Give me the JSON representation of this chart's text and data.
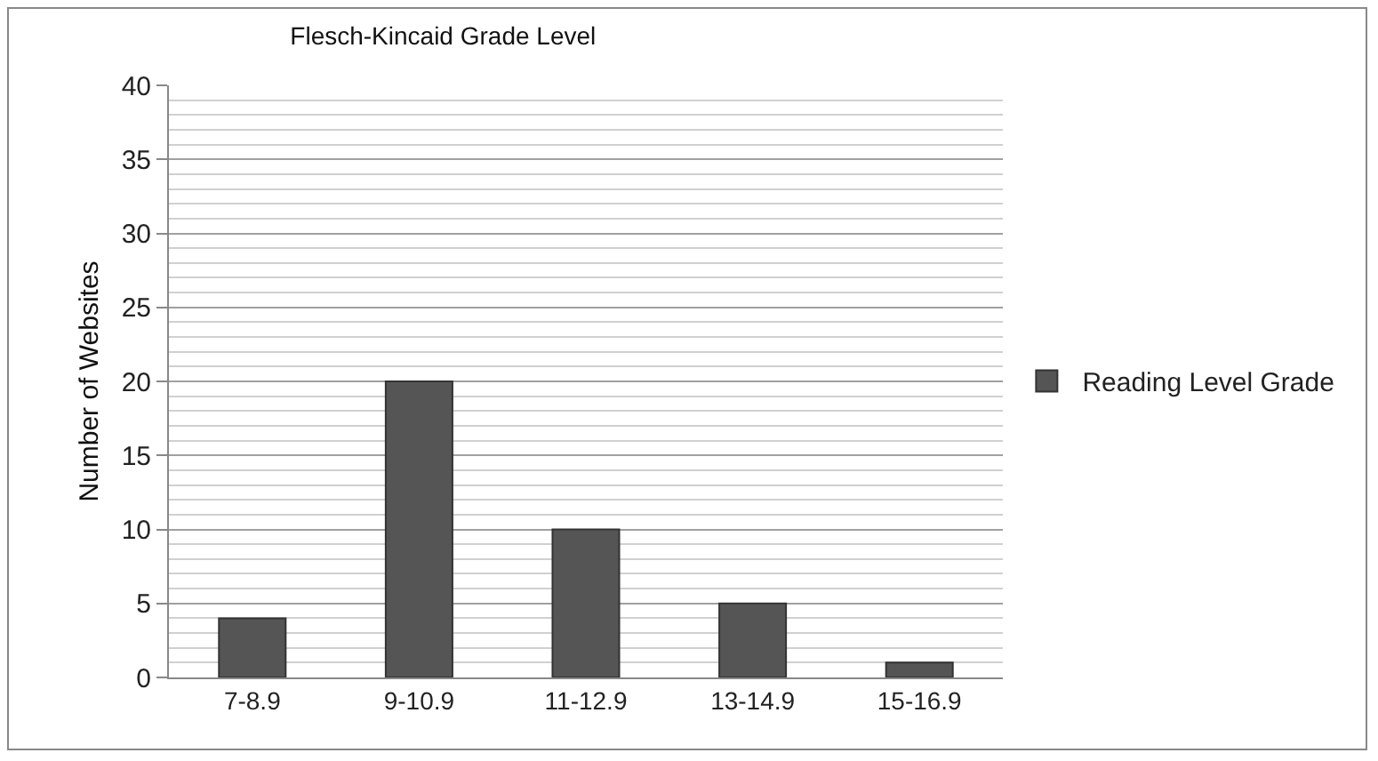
{
  "chart_data": {
    "type": "bar",
    "title": "Flesch-Kincaid Grade Level",
    "ylabel": "Number of Websites",
    "categories": [
      "7-8.9",
      "9-10.9",
      "11-12.9",
      "13-14.9",
      "15-16.9"
    ],
    "series": [
      {
        "name": "Reading Level Grade",
        "color": "#555555",
        "values": [
          4,
          20,
          10,
          5,
          1
        ]
      }
    ],
    "ylim": [
      0,
      40
    ],
    "yticks": [
      0,
      5,
      10,
      15,
      20,
      25,
      30,
      35,
      40
    ],
    "grid": true,
    "legend": "right"
  }
}
